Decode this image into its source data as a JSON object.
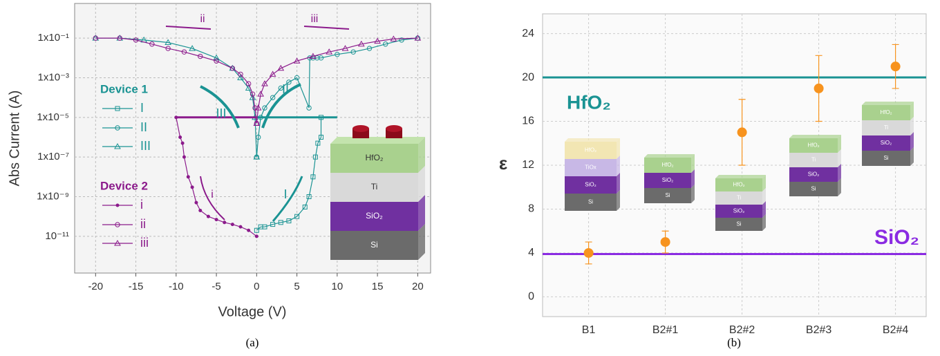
{
  "chart_data": [
    {
      "type": "line",
      "ylog": true,
      "grid": true,
      "x_label": "Voltage (V)",
      "y_label": "Abs Current (A)",
      "caption": "(a)",
      "xlim": [
        -22.6,
        21.6
      ],
      "xticks": [
        -20,
        -15,
        -10,
        -5,
        0,
        5,
        10,
        15,
        20
      ],
      "ylim": [
        1.4e-13,
        5.6
      ],
      "yticks": [
        {
          "value": 1e-11,
          "label": "10⁻¹¹"
        },
        {
          "value": 1e-09,
          "label": "1x10⁻⁹"
        },
        {
          "value": 1e-07,
          "label": "1x10⁻⁷"
        },
        {
          "value": 1e-05,
          "label": "1x10⁻⁵"
        },
        {
          "value": 0.001,
          "label": "1x10⁻³"
        },
        {
          "value": 0.1,
          "label": "1x10⁻¹"
        }
      ],
      "devices": [
        {
          "name": "Device 1",
          "color": "#1a9393",
          "compliance": {
            "x": [
              0,
              10
            ],
            "values": [
              1e-05,
              1e-05
            ]
          },
          "series": [
            {
              "name": "I",
              "marker": "square",
              "x": [
                0,
                0.5,
                1,
                2,
                3,
                4,
                5,
                6,
                6.5,
                7,
                7.3,
                7.6,
                8,
                8
              ],
              "values": [
                2e-11,
                3e-11,
                3e-11,
                4e-11,
                5e-11,
                6e-11,
                1e-10,
                3e-10,
                1e-09,
                1e-08,
                1e-07,
                5e-07,
                1e-06,
                1e-05
              ]
            },
            {
              "name": "II",
              "marker": "circle",
              "x": [
                20,
                18,
                16,
                14,
                12,
                10,
                8,
                7.5,
                7,
                6.6,
                6.5,
                5,
                4,
                3,
                2,
                1,
                0.5,
                0.2,
                0
              ],
              "values": [
                0.1,
                0.08,
                0.05,
                0.03,
                0.02,
                0.015,
                0.01,
                0.01,
                0.01,
                0.01,
                3e-05,
                0.001,
                0.0006,
                0.0003,
                0.0001,
                3e-05,
                1e-05,
                1e-06,
                1e-07
              ]
            },
            {
              "name": "III",
              "marker": "triangle",
              "x": [
                0,
                -0.2,
                -0.5,
                -1,
                -2,
                -3,
                -5,
                -8,
                -11,
                -14,
                -17,
                -20
              ],
              "values": [
                1e-07,
                1e-05,
                0.0001,
                0.0003,
                0.001,
                0.003,
                0.01,
                0.03,
                0.06,
                0.08,
                0.1,
                0.1
              ]
            }
          ]
        },
        {
          "name": "Device 2",
          "color": "#8b1a8b",
          "compliance": {
            "x": [
              -10,
              0
            ],
            "values": [
              1e-05,
              1e-05
            ]
          },
          "series": [
            {
              "name": "i",
              "marker": "dot",
              "x": [
                0,
                -1,
                -2,
                -3,
                -4,
                -5,
                -6,
                -7,
                -7.5,
                -8,
                -8.5,
                -9,
                -9.2,
                -9.5,
                -10
              ],
              "values": [
                1e-11,
                2e-11,
                3e-11,
                4e-11,
                5e-11,
                7e-11,
                1e-10,
                2e-10,
                5e-10,
                3e-09,
                1e-08,
                1e-07,
                5e-07,
                1e-06,
                1e-05
              ]
            },
            {
              "name": "ii",
              "marker": "circle",
              "x": [
                -20,
                -17,
                -15,
                -13,
                -11,
                -9,
                -7,
                -5,
                -3,
                -2,
                -1,
                -0.5,
                -0.2,
                0
              ],
              "values": [
                0.1,
                0.1,
                0.08,
                0.05,
                0.03,
                0.02,
                0.012,
                0.007,
                0.003,
                0.0015,
                0.0005,
                0.00015,
                3e-05,
                5e-06
              ]
            },
            {
              "name": "iii",
              "marker": "triangle",
              "x": [
                0,
                0.2,
                0.5,
                1,
                2,
                3,
                5,
                7,
                9,
                11,
                13,
                15,
                17,
                20
              ],
              "values": [
                5e-06,
                3e-05,
                0.00015,
                0.0005,
                0.0015,
                0.003,
                0.007,
                0.012,
                0.02,
                0.03,
                0.05,
                0.07,
                0.09,
                0.1
              ]
            }
          ]
        }
      ],
      "annotations": [
        {
          "text": "ii",
          "color": "#8b1a8b"
        },
        {
          "text": "iii",
          "color": "#8b1a8b"
        },
        {
          "text": "III",
          "color": "#1a9393"
        },
        {
          "text": "II",
          "color": "#1a9393"
        },
        {
          "text": "i",
          "color": "#8b1a8b"
        },
        {
          "text": "I",
          "color": "#1a9393"
        }
      ],
      "inset": [
        {
          "label": "HfO₂",
          "color": "#a9d18e"
        },
        {
          "label": "Ti",
          "color": "#d9d9d9"
        },
        {
          "label": "SiO₂",
          "color": "#7030a0"
        },
        {
          "label": "Si",
          "color": "#6b6b6b"
        }
      ]
    },
    {
      "type": "scatter",
      "grid": true,
      "y_label": "ε",
      "caption": "(b)",
      "categories": [
        "B1",
        "B2#1",
        "B2#2",
        "B2#3",
        "B2#4"
      ],
      "values": [
        4,
        5,
        15,
        19,
        21
      ],
      "errors": [
        1,
        1,
        3,
        3,
        2
      ],
      "color": "#f7931e",
      "ylim": [
        -1.8,
        25.8
      ],
      "yticks": [
        0,
        4,
        8,
        12,
        16,
        20,
        24
      ],
      "reference_lines": [
        {
          "label": "HfO₂",
          "value": 20,
          "color": "#1a9393"
        },
        {
          "label": "SiO₂",
          "value": 3.9,
          "color": "#8a2be2"
        }
      ],
      "insets": [
        [
          {
            "label": "HfO₂",
            "color": "#f2e6b3"
          },
          {
            "label": "TiOx",
            "color": "#c8b8e6"
          },
          {
            "label": "SiO₂",
            "color": "#7030a0"
          },
          {
            "label": "Si",
            "color": "#6b6b6b"
          }
        ],
        [
          {
            "label": "HfO₂",
            "color": "#a9d18e"
          },
          {
            "label": "SiO₂",
            "color": "#7030a0"
          },
          {
            "label": "Si",
            "color": "#6b6b6b"
          }
        ],
        [
          {
            "label": "HfO₂",
            "color": "#a9d18e"
          },
          {
            "label": "Ti",
            "color": "#d9d9d9"
          },
          {
            "label": "SiO₂",
            "color": "#7030a0"
          },
          {
            "label": "Si",
            "color": "#6b6b6b"
          }
        ],
        [
          {
            "label": "HfO₂",
            "color": "#a9d18e"
          },
          {
            "label": "Ti",
            "color": "#d9d9d9"
          },
          {
            "label": "SiO₂",
            "color": "#7030a0"
          },
          {
            "label": "Si",
            "color": "#6b6b6b"
          }
        ],
        [
          {
            "label": "HfO₂",
            "color": "#a9d18e"
          },
          {
            "label": "Ti",
            "color": "#d9d9d9"
          },
          {
            "label": "SiO₂",
            "color": "#7030a0"
          },
          {
            "label": "Si",
            "color": "#6b6b6b"
          }
        ]
      ]
    }
  ]
}
